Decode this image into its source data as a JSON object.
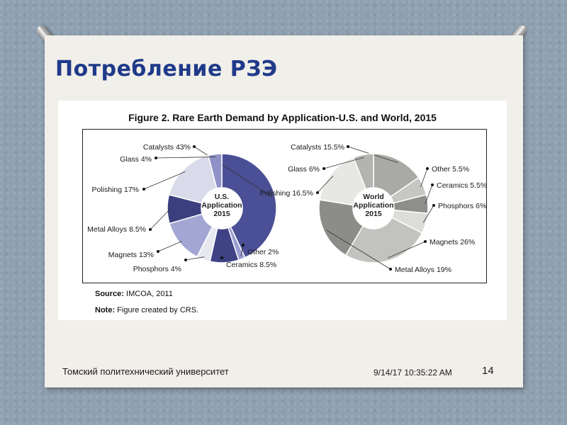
{
  "slide": {
    "title": "Потребление РЗЭ",
    "footer_left": "Томский политехнический университет",
    "footer_date": "9/14/17 10:35:22 AM",
    "page_number": "14"
  },
  "figure": {
    "title": "Figure 2. Rare Earth Demand by Application-U.S. and World, 2015",
    "source_label": "Source:",
    "source_text": "IMCOA, 2011",
    "note_label": "Note:",
    "note_text": "Figure created by CRS."
  },
  "chart_data": [
    {
      "type": "pie",
      "center_label": [
        "U.S.",
        "Application",
        "2015"
      ],
      "slices": [
        {
          "label": "Catalysts",
          "value": 43,
          "display": "Catalysts 43%",
          "color": "#4b4f95"
        },
        {
          "label": "Other",
          "value": 2,
          "display": "Other 2%",
          "color": "#9a9fd0"
        },
        {
          "label": "Ceramics",
          "value": 8.5,
          "display": "Ceramics 8.5%",
          "color": "#3f4385"
        },
        {
          "label": "Phosphors",
          "value": 4,
          "display": "Phosphors 4%",
          "color": "#e7e8f0"
        },
        {
          "label": "Magnets",
          "value": 13,
          "display": "Magnets 13%",
          "color": "#a3a6d3"
        },
        {
          "label": "Metal Alloys",
          "value": 8.5,
          "display": "Metal Alloys 8.5%",
          "color": "#3b3f7e"
        },
        {
          "label": "Polishing",
          "value": 17,
          "display": "Polishing 17%",
          "color": "#d9dbeb"
        },
        {
          "label": "Glass",
          "value": 4,
          "display": "Glass 4%",
          "color": "#8e92c6"
        }
      ]
    },
    {
      "type": "pie",
      "center_label": [
        "World",
        "Application",
        "2015"
      ],
      "slices": [
        {
          "label": "Catalysts",
          "value": 15.5,
          "display": "Catalysts 15.5%",
          "color": "#a9a9a5"
        },
        {
          "label": "Other",
          "value": 5.5,
          "display": "Other 5.5%",
          "color": "#c6c6c2"
        },
        {
          "label": "Ceramics",
          "value": 5.5,
          "display": "Ceramics 5.5%",
          "color": "#8e8e8a"
        },
        {
          "label": "Phosphors",
          "value": 6,
          "display": "Phosphors 6%",
          "color": "#dcdcd8"
        },
        {
          "label": "Magnets",
          "value": 26,
          "display": "Magnets 26%",
          "color": "#c2c2be"
        },
        {
          "label": "Metal Alloys",
          "value": 19,
          "display": "Metal Alloys 19%",
          "color": "#8c8c88"
        },
        {
          "label": "Polishing",
          "value": 16.5,
          "display": "Polishing 16.5%",
          "color": "#e7e7e3"
        },
        {
          "label": "Glass",
          "value": 6,
          "display": "Glass 6%",
          "color": "#b3b3af"
        }
      ]
    }
  ]
}
